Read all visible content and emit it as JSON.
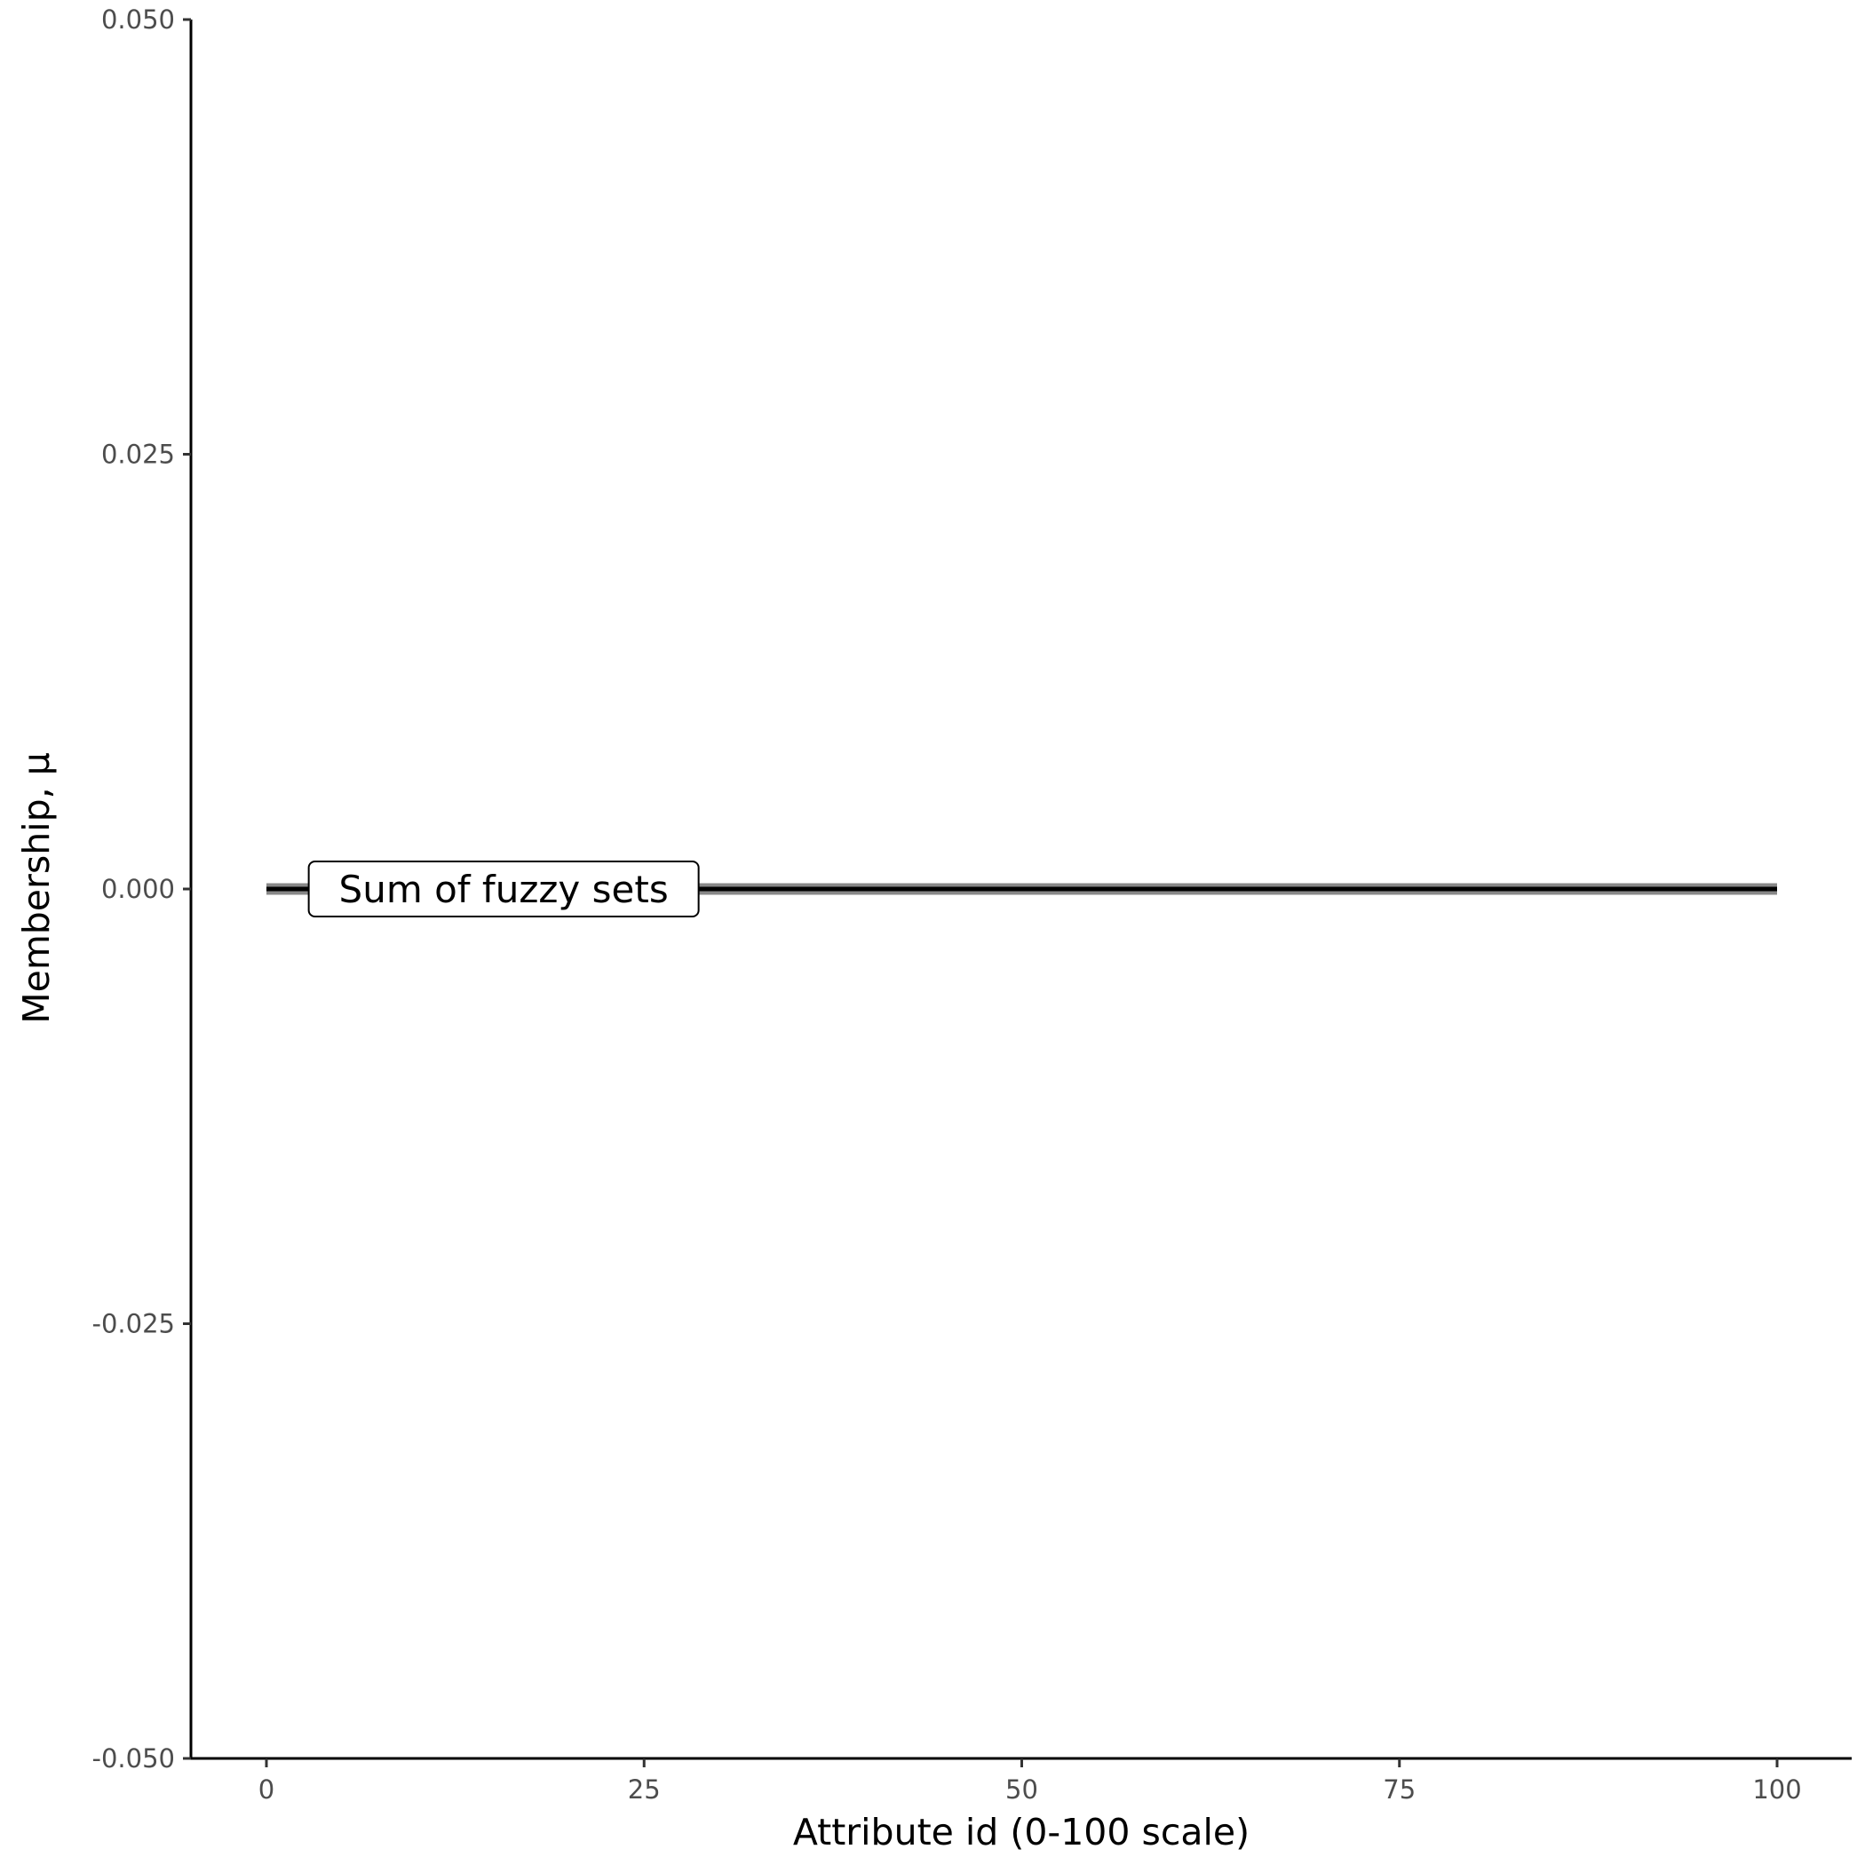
{
  "chart_data": {
    "type": "line",
    "xlabel": "Attribute id (0-100 scale)",
    "ylabel": "Membership, μ",
    "xlim": [
      -5,
      105
    ],
    "ylim": [
      -0.05,
      0.05
    ],
    "x_ticks": [
      0,
      25,
      50,
      75,
      100
    ],
    "x_tick_labels": [
      "0",
      "25",
      "50",
      "75",
      "100"
    ],
    "y_ticks": [
      -0.05,
      -0.025,
      0,
      0.025,
      0.05
    ],
    "y_tick_labels": [
      "-0.050",
      "-0.025",
      "0.000",
      "0.025",
      "0.050"
    ],
    "grid": false,
    "series": [
      {
        "x": [
          0,
          100
        ],
        "y": [
          0,
          0
        ],
        "color": "#000000",
        "halo_color": "#888888"
      }
    ],
    "annotations": [
      {
        "text": "Sum of fuzzy sets",
        "x": 14,
        "y": 0
      }
    ]
  }
}
